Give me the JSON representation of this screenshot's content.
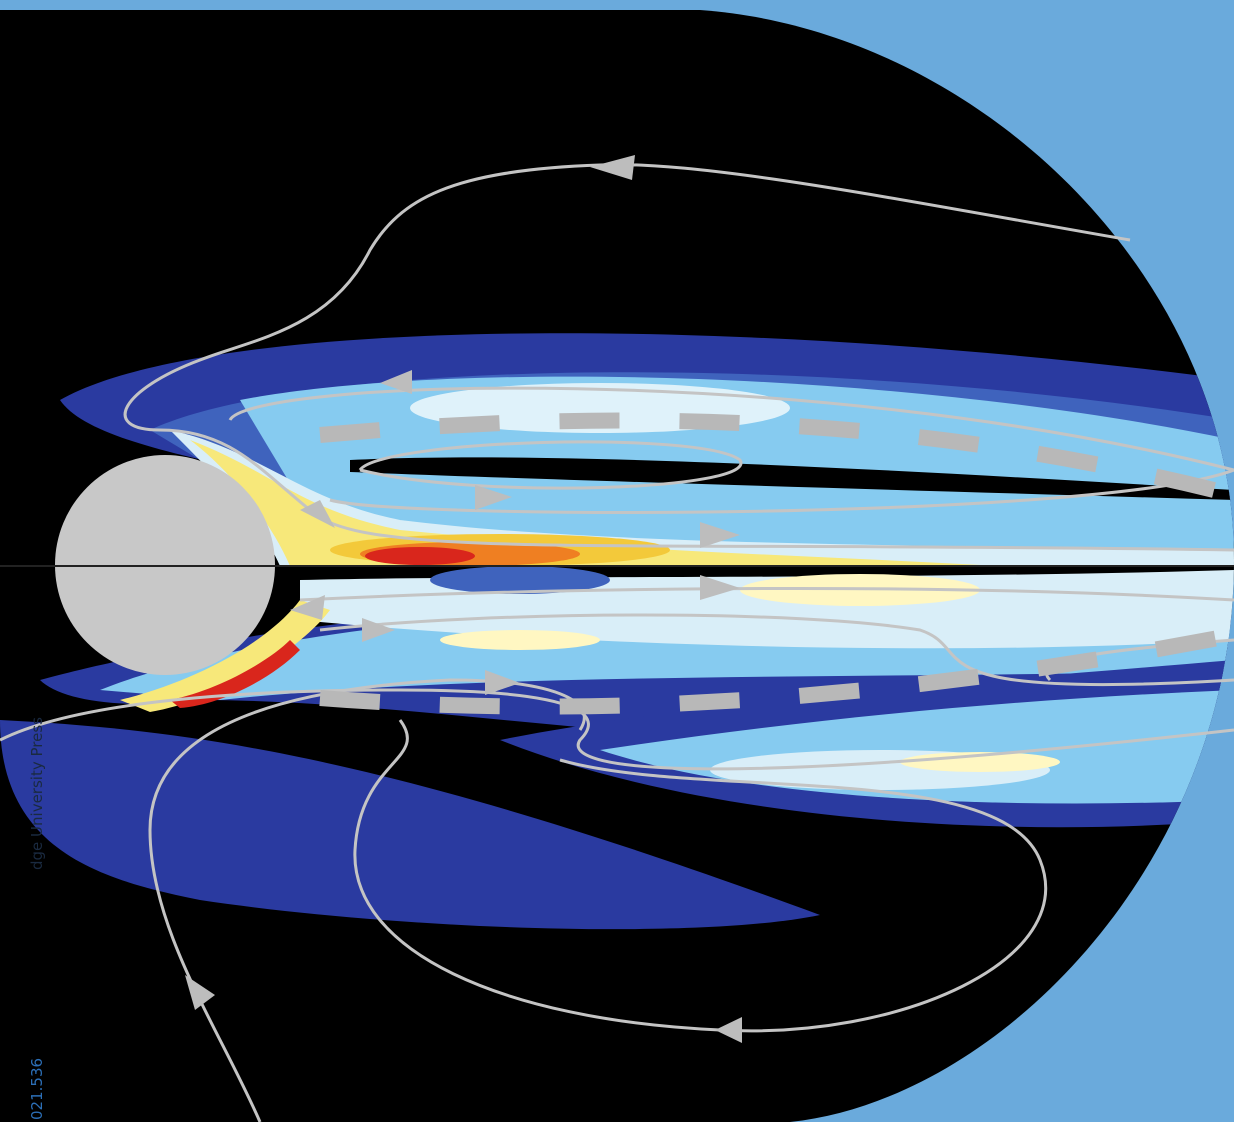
{
  "side_text": {
    "doi": "021.536",
    "publisher": "dge University Press"
  }
}
